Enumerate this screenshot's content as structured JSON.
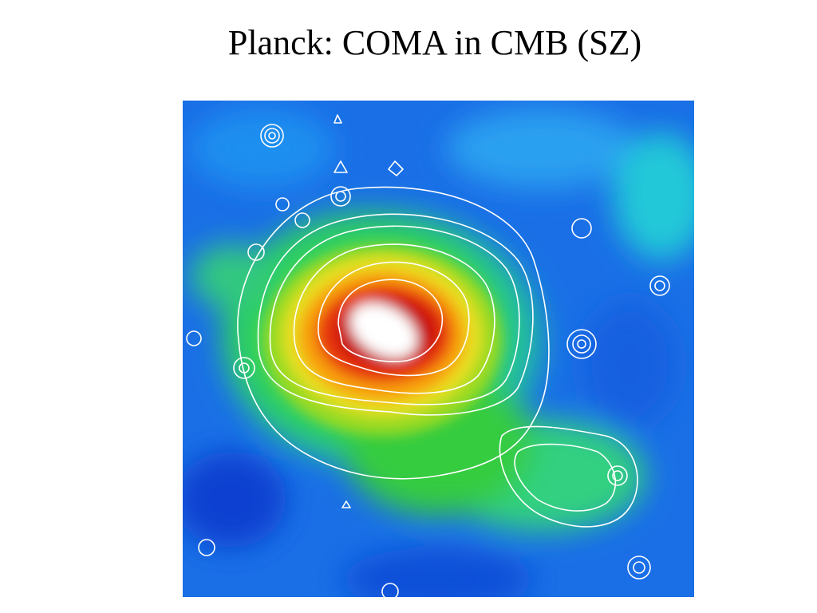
{
  "title": "Planck: COMA in CMB (SZ)"
}
